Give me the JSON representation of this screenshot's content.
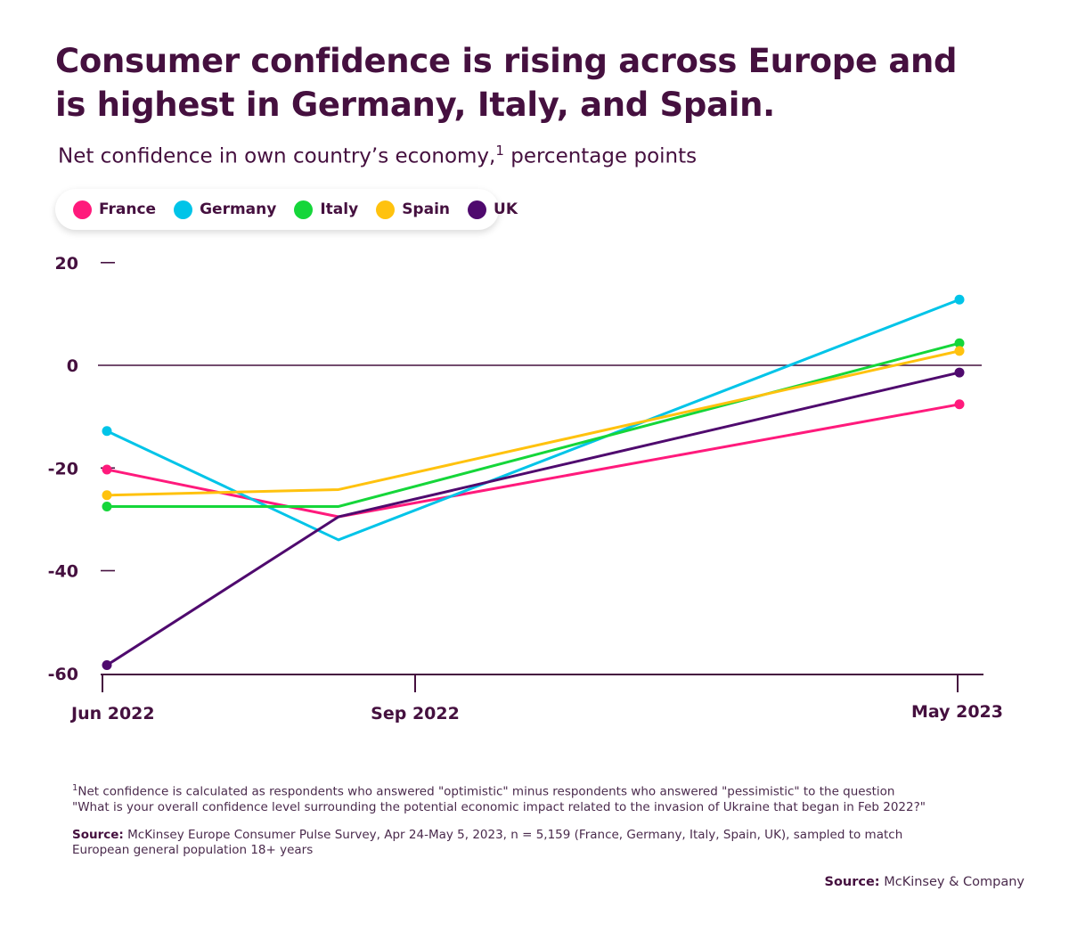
{
  "header": {
    "title": "Consumer confidence is rising across Europe and is highest in Germany, Italy, and Spain.",
    "subtitle": "Net confidence in own country’s economy,",
    "subtitle_sup": "1",
    "subtitle_unit": " percentage points"
  },
  "chart_data": {
    "type": "line",
    "title": "Consumer confidence is rising across Europe and is highest in Germany, Italy, and Spain.",
    "ylabel": "Net confidence in own country’s economy, percentage points",
    "ylim": [
      -60,
      20
    ],
    "y_ticks": [
      "20",
      "0",
      "-20",
      "-40",
      "-60"
    ],
    "x_ticks": [
      "Jun 2022",
      "Sep 2022",
      "May 2023"
    ],
    "x": [
      "Jun 2022",
      "Sep 2022",
      "May 2023"
    ],
    "grid": false,
    "legend": "top-left",
    "series": [
      {
        "name": "France",
        "color": "#ff1a7c",
        "values": [
          -20.3,
          -29.5,
          -7.6
        ]
      },
      {
        "name": "Germany",
        "color": "#00c4e8",
        "values": [
          -12.8,
          -34.0,
          12.8
        ]
      },
      {
        "name": "Italy",
        "color": "#15d63a",
        "values": [
          -27.5,
          -27.5,
          4.3
        ]
      },
      {
        "name": "Spain",
        "color": "#ffc20e",
        "values": [
          -25.3,
          -24.2,
          2.8
        ]
      },
      {
        "name": "UK",
        "color": "#4f0a6e",
        "values": [
          -58.4,
          -29.5,
          -1.4
        ]
      }
    ]
  },
  "footnote": {
    "sup": "1",
    "line1": "Net confidence is calculated as respondents who answered \"optimistic\" minus respondents who answered \"pessimistic\" to the question",
    "line2": "\"What is your overall confidence level surrounding the potential economic impact related to the invasion of Ukraine that began in Feb 2022?\""
  },
  "source": {
    "label": "Source:",
    "text": " McKinsey Europe Consumer Pulse Survey, Apr 24-May 5, 2023, n = 5,159 (France, Germany, Italy, Spain, UK), sampled to match European general population 18+ years"
  },
  "credit": {
    "label": "Source:",
    "text": " McKinsey & Company"
  }
}
